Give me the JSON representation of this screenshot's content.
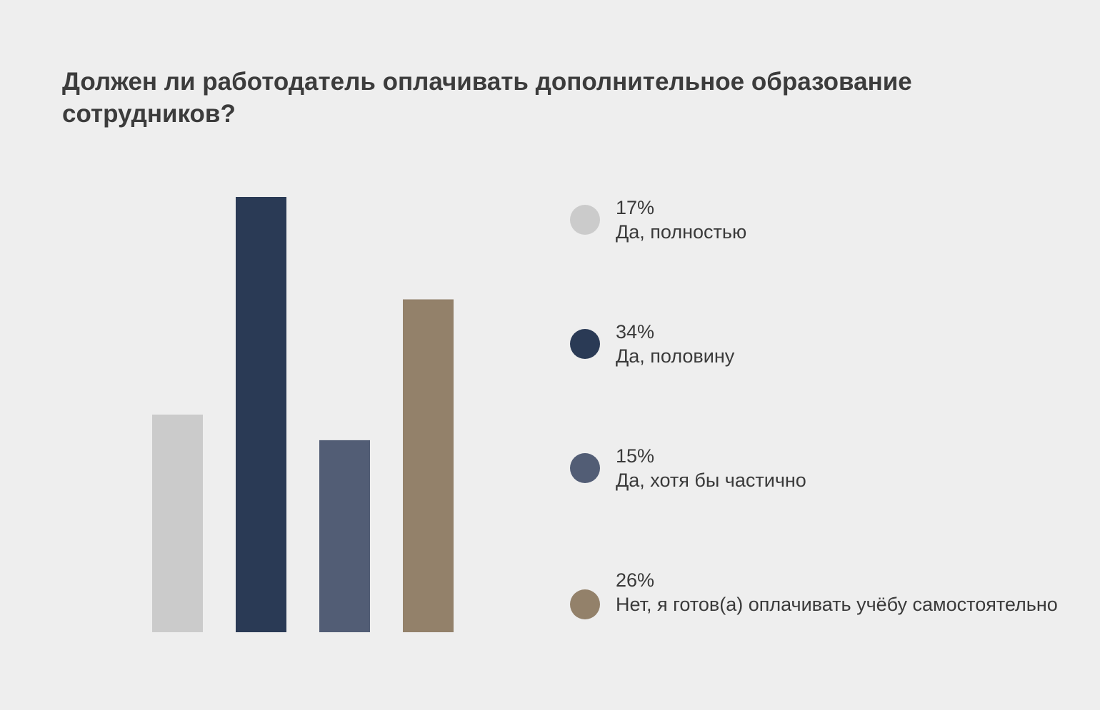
{
  "title": "Должен ли работодатель оплачивать дополнительное образование сотрудников?",
  "chart_data": {
    "type": "bar",
    "title": "Должен ли работодатель оплачивать дополнительное образование сотрудников?",
    "categories": [
      "Да, полностью",
      "Да, половину",
      "Да, хотя бы частично",
      "Нет, я готов(а) оплачивать учёбу самостоятельно"
    ],
    "values": [
      17,
      34,
      15,
      26
    ],
    "value_labels": [
      "17%",
      "34%",
      "15%",
      "26%"
    ],
    "colors": [
      "#cbcbcb",
      "#2a3a55",
      "#525d75",
      "#93816a"
    ],
    "ylim": [
      0,
      34
    ],
    "xlabel": "",
    "ylabel": "",
    "grid": false,
    "legend_position": "right"
  },
  "legend": [
    {
      "value": "17%",
      "label": "Да, полностью",
      "color": "#cbcbcb"
    },
    {
      "value": "34%",
      "label": "Да, половину",
      "color": "#2a3a55"
    },
    {
      "value": "15%",
      "label": "Да, хотя бы частично",
      "color": "#525d75"
    },
    {
      "value": "26%",
      "label": "Нет, я готов(а) оплачивать учёбу самостоятельно",
      "color": "#93816a"
    }
  ]
}
